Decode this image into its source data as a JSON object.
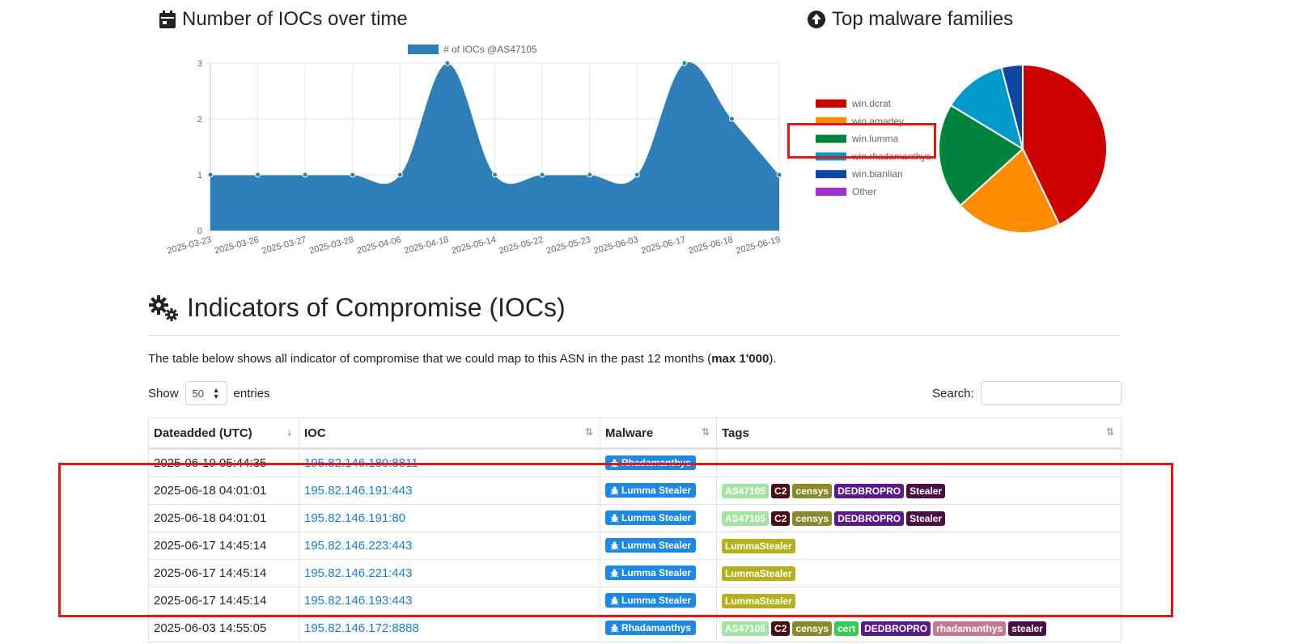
{
  "line_section": {
    "title": "Number of IOCs over time"
  },
  "pie_section": {
    "title": "Top malware families"
  },
  "chart_data": [
    {
      "type": "area",
      "legend": [
        "# of IOCs @AS47105"
      ],
      "categories": [
        "2025-03-23",
        "2025-03-26",
        "2025-03-27",
        "2025-03-28",
        "2025-04-06",
        "2025-04-18",
        "2025-05-14",
        "2025-05-22",
        "2025-05-23",
        "2025-06-03",
        "2025-06-17",
        "2025-06-18",
        "2025-06-19"
      ],
      "series": [
        {
          "name": "# of IOCs @AS47105",
          "values": [
            1,
            1,
            1,
            1,
            1,
            3,
            1,
            1,
            1,
            1,
            3,
            2,
            1
          ]
        }
      ],
      "yticks": [
        "0",
        "1",
        "2",
        "3"
      ],
      "ylim": [
        0,
        3
      ],
      "grid": true,
      "colors": {
        "fill": "#2e7fb8",
        "grid": "#e5e5e5"
      }
    },
    {
      "type": "pie",
      "labels": [
        "win.dcrat",
        "win.amadey",
        "win.lumma",
        "win.rhadamanthys",
        "win.bianlian",
        "Other"
      ],
      "values": [
        42,
        20,
        20,
        12,
        4,
        0
      ],
      "colors": [
        "#cc0000",
        "#ff8c00",
        "#00843d",
        "#0099cc",
        "#0d47a1",
        "#9933cc"
      ],
      "legend_position": "left"
    }
  ],
  "ioc_section": {
    "title": "Indicators of Compromise (IOCs)",
    "desc_pre": "The table below shows all indicator of compromise that we could map to this ASN in the past 12 months (",
    "desc_bold": "max 1'000",
    "desc_post": ").",
    "show_label": "Show",
    "entries_value": "50",
    "entries_label": "entries",
    "search_label": "Search:"
  },
  "table": {
    "headers": [
      "Dateadded (UTC)",
      "IOC",
      "Malware",
      "Tags"
    ],
    "rows": [
      {
        "date": "2025-06-19 05:44:35",
        "ioc": "195.82.146.180:8811",
        "malware": "Rhadamanthys",
        "tags": []
      },
      {
        "date": "2025-06-18 04:01:01",
        "ioc": "195.82.146.191:443",
        "malware": "Lumma Stealer",
        "tags": [
          {
            "t": "AS47105",
            "c": "#a3e4a3"
          },
          {
            "t": "C2",
            "c": "#4a0d16"
          },
          {
            "t": "censys",
            "c": "#8a8a2c"
          },
          {
            "t": "DEDBROPRO",
            "c": "#5b1a8a"
          },
          {
            "t": "Stealer",
            "c": "#4a0e45"
          }
        ]
      },
      {
        "date": "2025-06-18 04:01:01",
        "ioc": "195.82.146.191:80",
        "malware": "Lumma Stealer",
        "tags": [
          {
            "t": "AS47105",
            "c": "#a3e4a3"
          },
          {
            "t": "C2",
            "c": "#4a0d16"
          },
          {
            "t": "censys",
            "c": "#8a8a2c"
          },
          {
            "t": "DEDBROPRO",
            "c": "#5b1a8a"
          },
          {
            "t": "Stealer",
            "c": "#4a0e45"
          }
        ]
      },
      {
        "date": "2025-06-17 14:45:14",
        "ioc": "195.82.146.223:443",
        "malware": "Lumma Stealer",
        "tags": [
          {
            "t": "LummaStealer",
            "c": "#b5b020"
          }
        ]
      },
      {
        "date": "2025-06-17 14:45:14",
        "ioc": "195.82.146.221:443",
        "malware": "Lumma Stealer",
        "tags": [
          {
            "t": "LummaStealer",
            "c": "#b5b020"
          }
        ]
      },
      {
        "date": "2025-06-17 14:45:14",
        "ioc": "195.82.146.193:443",
        "malware": "Lumma Stealer",
        "tags": [
          {
            "t": "LummaStealer",
            "c": "#b5b020"
          }
        ]
      },
      {
        "date": "2025-06-03 14:55:05",
        "ioc": "195.82.146.172:8888",
        "malware": "Rhadamanthys",
        "tags": [
          {
            "t": "AS47105",
            "c": "#a3e4a3"
          },
          {
            "t": "C2",
            "c": "#4a0d16"
          },
          {
            "t": "censys",
            "c": "#8a8a2c"
          },
          {
            "t": "cert",
            "c": "#33cc55"
          },
          {
            "t": "DEDBROPRO",
            "c": "#5b1a8a"
          },
          {
            "t": "rhadamanthys",
            "c": "#c47a8a"
          },
          {
            "t": "stealer",
            "c": "#4a0e45"
          }
        ]
      }
    ]
  },
  "colors": {
    "link": "#1a7bd6",
    "badge": "#1e88e5",
    "highlight": "#e01818"
  }
}
